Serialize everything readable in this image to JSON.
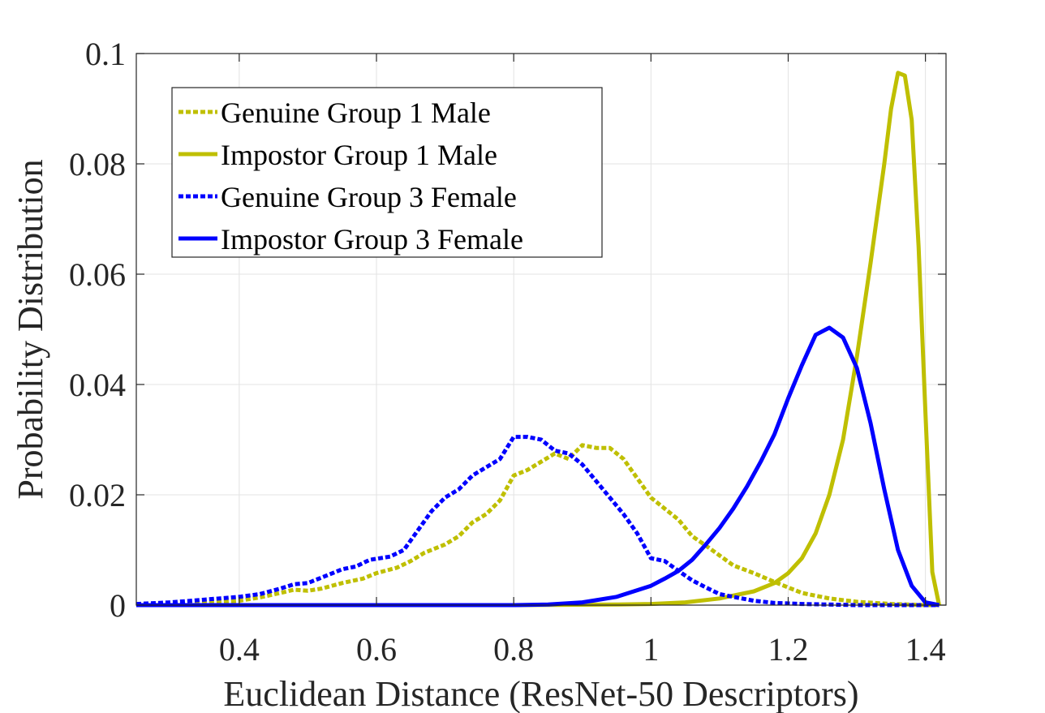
{
  "chart_data": {
    "type": "line",
    "title": "",
    "xlabel": "Euclidean Distance (ResNet-50 Descriptors)",
    "ylabel": "Probability Distribution",
    "xlim": [
      0.25,
      1.43
    ],
    "ylim": [
      0,
      0.1
    ],
    "xticks": [
      0.4,
      0.6,
      0.8,
      1.0,
      1.2,
      1.4
    ],
    "xtick_labels": [
      "0.4",
      "0.6",
      "0.8",
      "1",
      "1.2",
      "1.4"
    ],
    "yticks": [
      0,
      0.02,
      0.04,
      0.06,
      0.08,
      0.1
    ],
    "ytick_labels": [
      "0",
      "0.02",
      "0.04",
      "0.06",
      "0.08",
      "0.1"
    ],
    "grid": true,
    "legend_position": "top-left",
    "series": [
      {
        "name": "Genuine Group 1 Male",
        "color": "#bfbf00",
        "style": "dotted",
        "x": [
          0.25,
          0.3,
          0.35,
          0.4,
          0.43,
          0.46,
          0.48,
          0.5,
          0.52,
          0.55,
          0.58,
          0.6,
          0.63,
          0.65,
          0.67,
          0.7,
          0.72,
          0.74,
          0.76,
          0.78,
          0.8,
          0.82,
          0.84,
          0.86,
          0.88,
          0.9,
          0.92,
          0.94,
          0.96,
          0.98,
          1.0,
          1.02,
          1.04,
          1.06,
          1.08,
          1.1,
          1.12,
          1.15,
          1.18,
          1.22,
          1.26,
          1.3,
          1.35,
          1.4,
          1.42
        ],
        "y": [
          0,
          0.0002,
          0.0004,
          0.0008,
          0.0014,
          0.0022,
          0.0028,
          0.0026,
          0.003,
          0.004,
          0.0048,
          0.0058,
          0.0068,
          0.008,
          0.0095,
          0.011,
          0.0125,
          0.015,
          0.0165,
          0.019,
          0.0235,
          0.0245,
          0.026,
          0.0275,
          0.0265,
          0.029,
          0.0285,
          0.0285,
          0.0265,
          0.023,
          0.0195,
          0.0175,
          0.0155,
          0.0125,
          0.0108,
          0.009,
          0.0072,
          0.0058,
          0.0042,
          0.0022,
          0.0012,
          0.0006,
          0.0002,
          0,
          0
        ]
      },
      {
        "name": "Impostor Group 1 Male",
        "color": "#bfbf00",
        "style": "solid",
        "x": [
          0.25,
          0.8,
          0.95,
          1.0,
          1.05,
          1.1,
          1.15,
          1.18,
          1.2,
          1.22,
          1.24,
          1.26,
          1.28,
          1.3,
          1.32,
          1.34,
          1.35,
          1.36,
          1.37,
          1.38,
          1.39,
          1.4,
          1.41,
          1.42
        ],
        "y": [
          0,
          0,
          0.0001,
          0.0002,
          0.0005,
          0.0012,
          0.0025,
          0.004,
          0.0058,
          0.0085,
          0.013,
          0.02,
          0.03,
          0.045,
          0.062,
          0.08,
          0.09,
          0.0965,
          0.096,
          0.088,
          0.065,
          0.035,
          0.006,
          0
        ]
      },
      {
        "name": "Genuine Group 3 Female",
        "color": "#0000ff",
        "style": "dotted",
        "x": [
          0.25,
          0.3,
          0.35,
          0.4,
          0.43,
          0.46,
          0.48,
          0.5,
          0.52,
          0.55,
          0.57,
          0.59,
          0.62,
          0.64,
          0.66,
          0.68,
          0.7,
          0.72,
          0.74,
          0.76,
          0.78,
          0.8,
          0.82,
          0.84,
          0.86,
          0.88,
          0.9,
          0.92,
          0.94,
          0.96,
          0.98,
          1.0,
          1.02,
          1.04,
          1.06,
          1.08,
          1.1,
          1.12,
          1.15,
          1.18,
          1.22,
          1.3,
          1.4,
          1.42
        ],
        "y": [
          0.0002,
          0.0005,
          0.001,
          0.0015,
          0.002,
          0.003,
          0.0038,
          0.004,
          0.005,
          0.0065,
          0.007,
          0.0082,
          0.0088,
          0.01,
          0.0135,
          0.017,
          0.0195,
          0.021,
          0.0235,
          0.025,
          0.0265,
          0.0305,
          0.0305,
          0.03,
          0.028,
          0.0275,
          0.0255,
          0.0225,
          0.0195,
          0.0165,
          0.013,
          0.0085,
          0.008,
          0.0062,
          0.0045,
          0.0032,
          0.002,
          0.0015,
          0.0008,
          0.0004,
          0.0002,
          0,
          0,
          0
        ]
      },
      {
        "name": "Impostor Group 3 Female",
        "color": "#0000ff",
        "style": "solid",
        "x": [
          0.25,
          0.8,
          0.85,
          0.9,
          0.95,
          1.0,
          1.02,
          1.04,
          1.06,
          1.08,
          1.1,
          1.12,
          1.14,
          1.16,
          1.18,
          1.2,
          1.22,
          1.24,
          1.26,
          1.28,
          1.3,
          1.32,
          1.34,
          1.36,
          1.38,
          1.4,
          1.42
        ],
        "y": [
          0,
          0,
          0.0001,
          0.0005,
          0.0015,
          0.0035,
          0.0048,
          0.0062,
          0.0082,
          0.011,
          0.014,
          0.0175,
          0.0215,
          0.026,
          0.031,
          0.0375,
          0.0435,
          0.049,
          0.0503,
          0.0485,
          0.043,
          0.033,
          0.021,
          0.01,
          0.0035,
          0.0005,
          0
        ]
      }
    ]
  }
}
